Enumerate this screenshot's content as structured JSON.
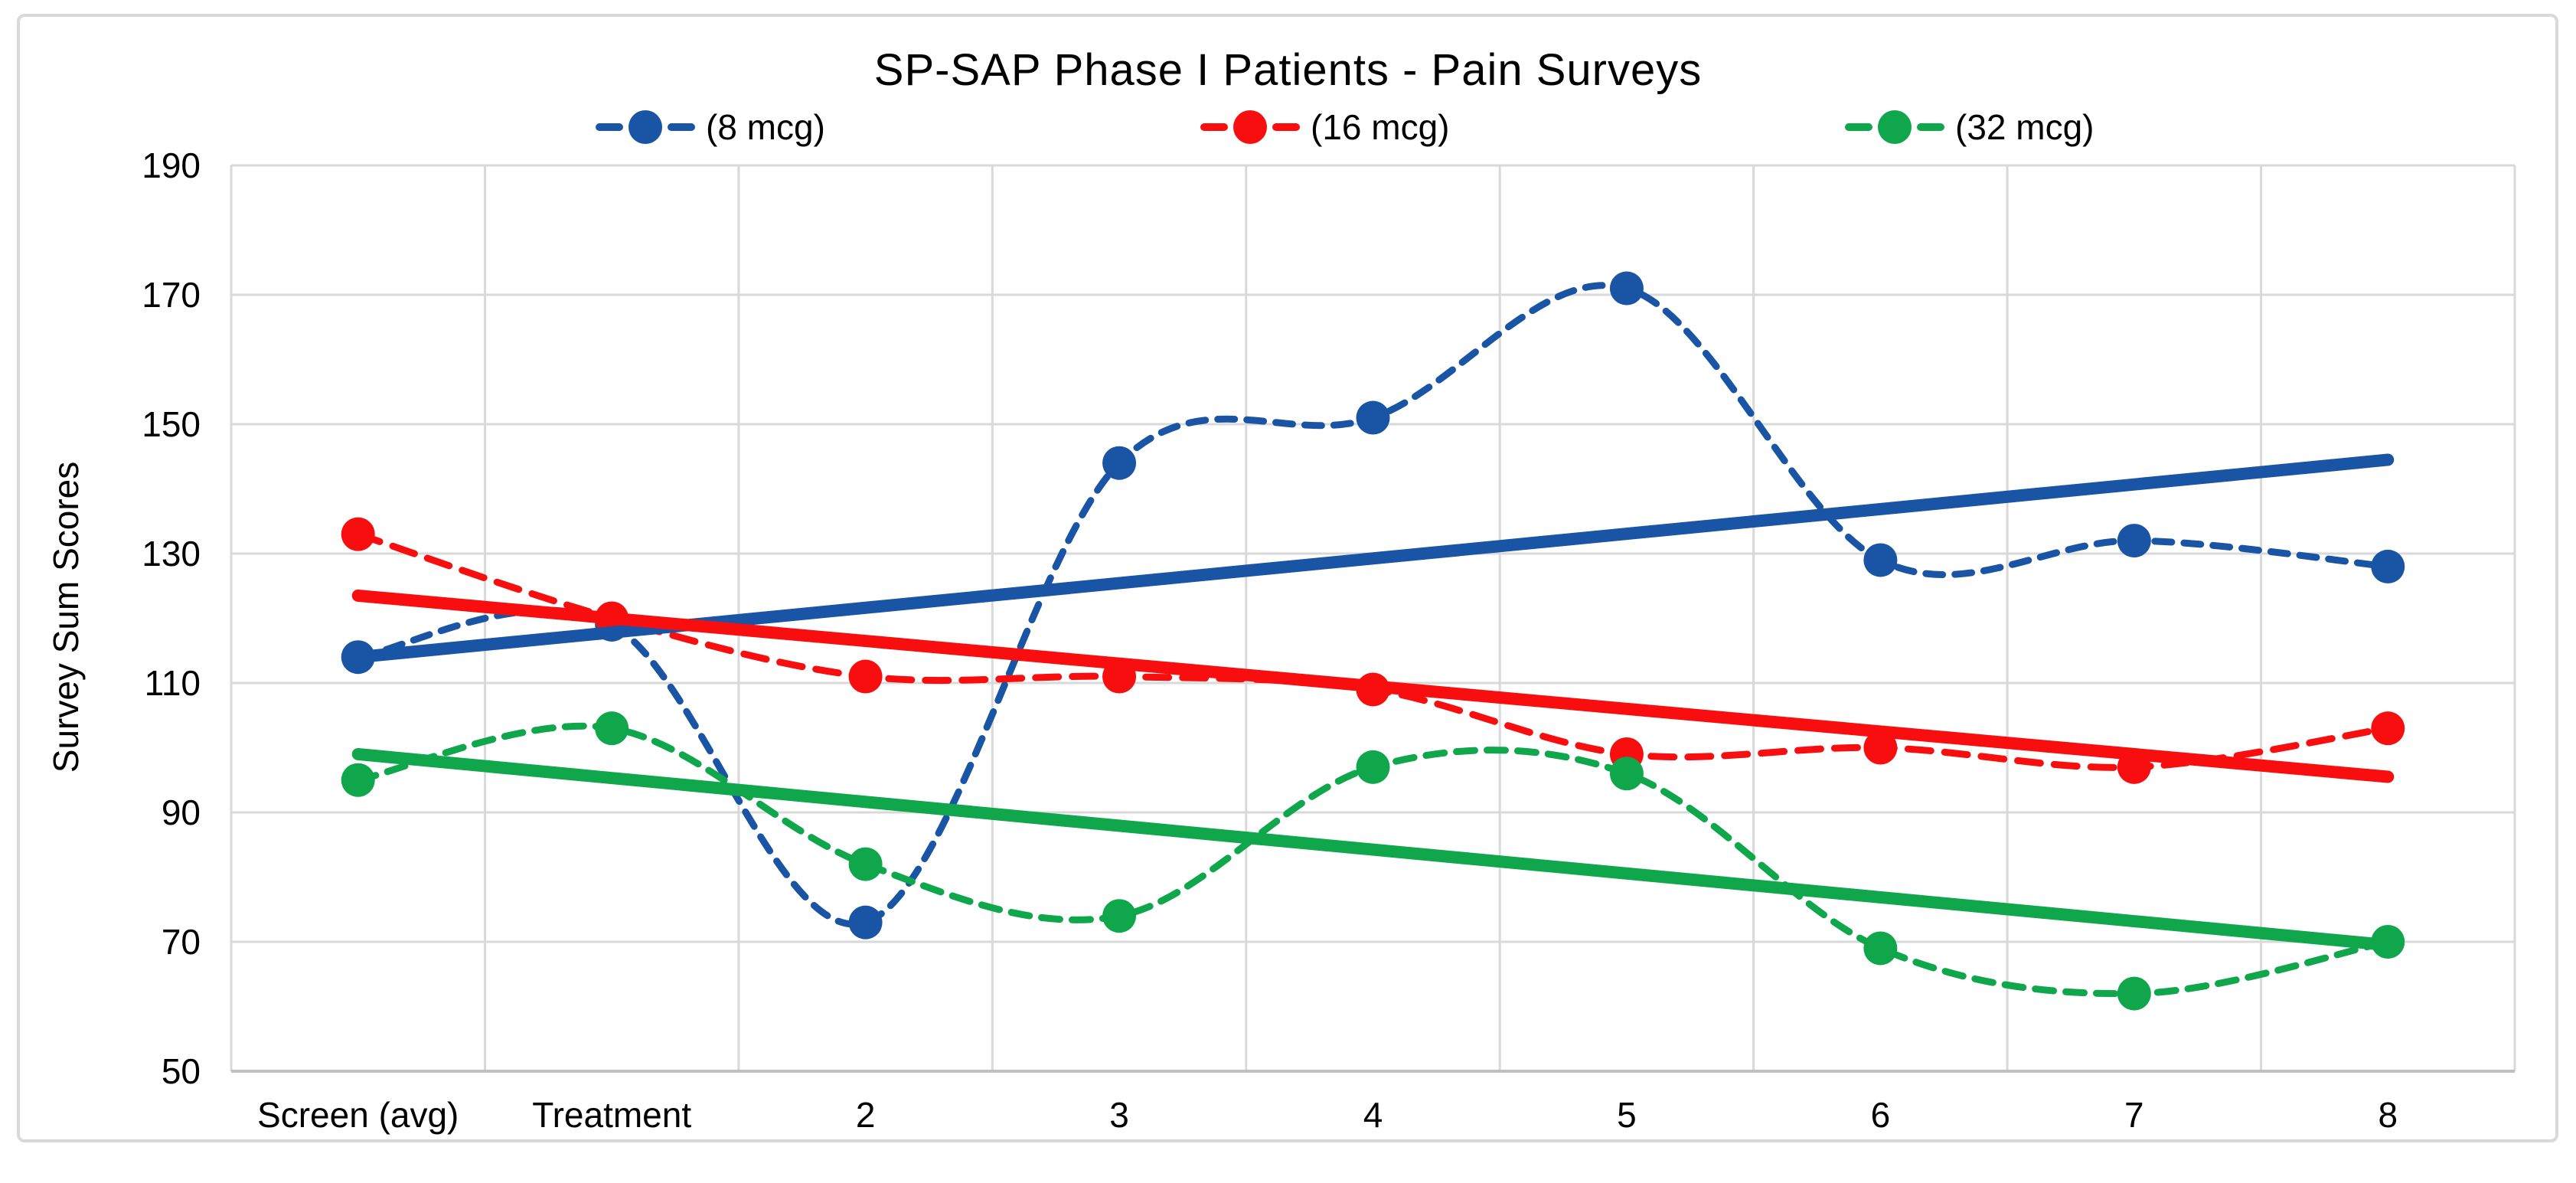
{
  "title": "SP-SAP Phase I Patients - Pain Surveys",
  "y_axis_title": "Survey Sum Scores",
  "legend": {
    "items": [
      {
        "label": "(8 mcg)"
      },
      {
        "label": "(16 mcg)"
      },
      {
        "label": "(32 mcg)"
      }
    ]
  },
  "chart_data": {
    "type": "line",
    "title": "SP-SAP Phase I Patients - Pain Surveys",
    "xlabel": "",
    "ylabel": "Survey Sum Scores",
    "ylim": [
      50,
      190
    ],
    "ytick_step": 20,
    "ytick_labels": [
      "50",
      "70",
      "90",
      "110",
      "130",
      "150",
      "170",
      "190"
    ],
    "grid": true,
    "legend_position": "top",
    "line_style": "smooth-dashed-with-markers",
    "trendline_style": "solid-linear",
    "categories": [
      "Screen (avg)",
      "Treatment",
      "2",
      "3",
      "4",
      "5",
      "6",
      "7",
      "8"
    ],
    "series": [
      {
        "name": "(8 mcg)",
        "color": "#1a54a4",
        "values": [
          114,
          119,
          73,
          144,
          151,
          171,
          129,
          132,
          128
        ],
        "trendline": {
          "start": 114,
          "end": 144.5
        }
      },
      {
        "name": "(16 mcg)",
        "color": "#f80e0e",
        "values": [
          133,
          120,
          111,
          111,
          109,
          99,
          100,
          97,
          103
        ],
        "trendline": {
          "start": 123.5,
          "end": 95.5
        }
      },
      {
        "name": "(32 mcg)",
        "color": "#0fa64c",
        "values": [
          95,
          103,
          82,
          74,
          97,
          96,
          69,
          62,
          70
        ],
        "trendline": {
          "start": 99,
          "end": 69.5
        }
      }
    ],
    "colors": {
      "grid": "#d9d9d9",
      "axis": "#c0c0c0",
      "text": "#000000",
      "border": "#d9d9d9",
      "background": "#ffffff"
    }
  }
}
